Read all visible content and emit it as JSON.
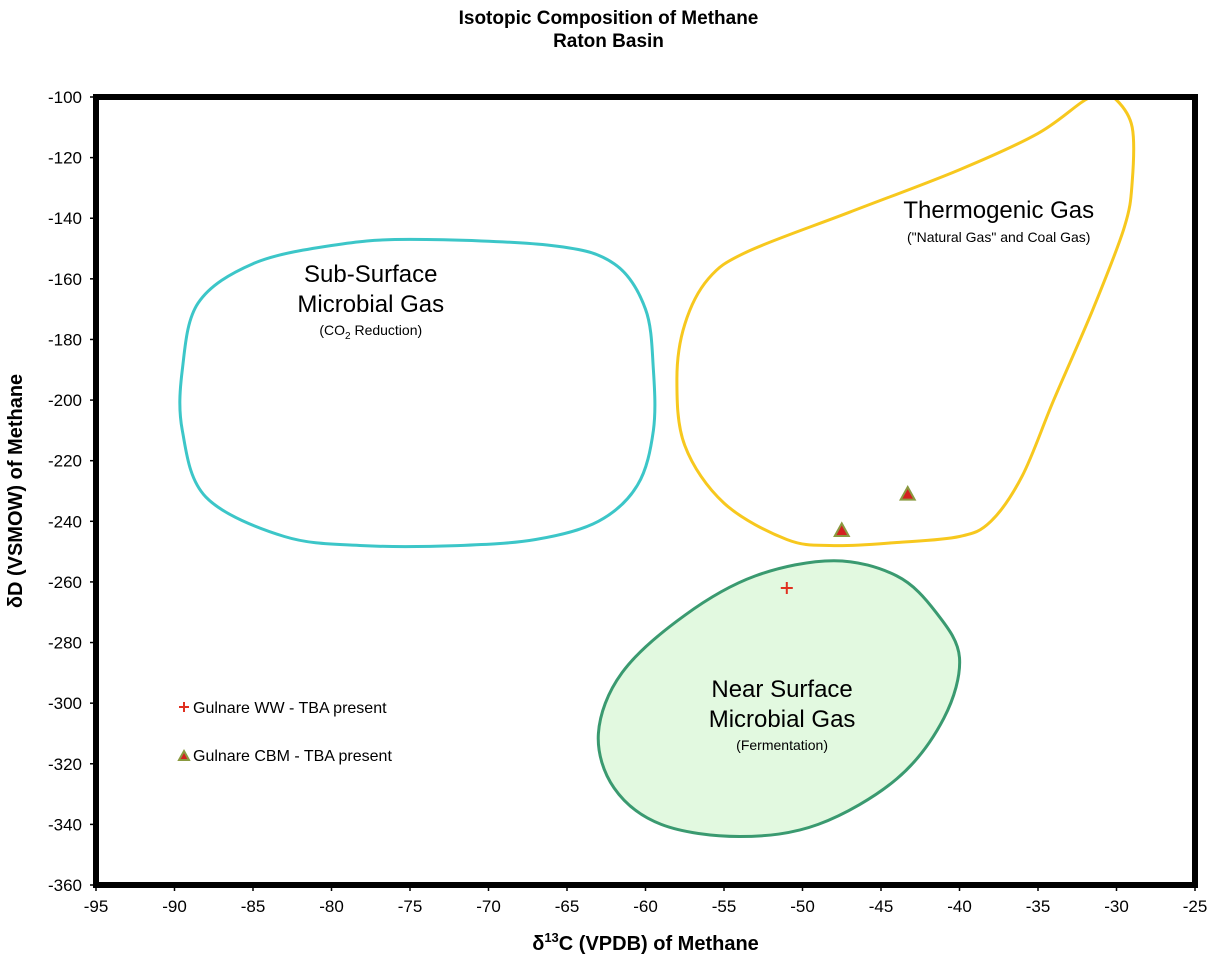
{
  "chart_data": {
    "type": "scatter",
    "title": "Isotopic Composition of Methane",
    "subtitle": "Raton Basin",
    "xlabel_prefix": "δ",
    "xlabel_sup": "13",
    "xlabel_rest": "C  (VPDB) of Methane",
    "ylabel": "δD (VSMOW) of Methane",
    "xlim": [
      -95,
      -25
    ],
    "ylim": [
      -360,
      -100
    ],
    "x_ticks": [
      -95,
      -90,
      -85,
      -80,
      -75,
      -70,
      -65,
      -60,
      -55,
      -50,
      -45,
      -40,
      -35,
      -30,
      -25
    ],
    "y_ticks": [
      -100,
      -120,
      -140,
      -160,
      -180,
      -200,
      -220,
      -240,
      -260,
      -280,
      -300,
      -320,
      -340,
      -360
    ],
    "grid": false,
    "legend_position": "lower-left",
    "series": [
      {
        "name": "Gulnare WW - TBA present",
        "marker": "plus",
        "color": "#e03020",
        "points": [
          {
            "x": -51.0,
            "y": -262
          }
        ]
      },
      {
        "name": "Gulnare CBM - TBA present",
        "marker": "triangle",
        "color": "#d42020",
        "edge_color": "#8a9a40",
        "points": [
          {
            "x": -47.5,
            "y": -243
          },
          {
            "x": -43.3,
            "y": -231
          }
        ]
      }
    ],
    "regions": [
      {
        "name": "Sub-Surface Microbial Gas",
        "label_line1": "Sub-Surface",
        "label_line2": "Microbial Gas",
        "sublabel_pre": "(CO",
        "sublabel_sub": "2",
        "sublabel_post": " Reduction)",
        "label_x": -77.5,
        "label_y": -161,
        "color": "#3cc6c8",
        "fill": "none",
        "outline": [
          [
            -75,
            -147
          ],
          [
            -66,
            -149
          ],
          [
            -62,
            -155
          ],
          [
            -60,
            -170
          ],
          [
            -59.5,
            -190
          ],
          [
            -59.5,
            -210
          ],
          [
            -60.5,
            -228
          ],
          [
            -63,
            -240
          ],
          [
            -67,
            -246
          ],
          [
            -72,
            -248
          ],
          [
            -78,
            -248
          ],
          [
            -83,
            -245
          ],
          [
            -88,
            -232
          ],
          [
            -89.5,
            -210
          ],
          [
            -89.5,
            -190
          ],
          [
            -88.5,
            -168
          ],
          [
            -85,
            -155
          ],
          [
            -80,
            -149
          ]
        ]
      },
      {
        "name": "Thermogenic Gas",
        "label_line1": "Thermogenic Gas",
        "sublabel": "(\"Natural Gas\" and Coal Gas)",
        "label_x": -37.5,
        "label_y": -140,
        "color": "#f7c81e",
        "fill": "none",
        "outline": [
          [
            -31,
            -100
          ],
          [
            -30,
            -101
          ],
          [
            -29,
            -110
          ],
          [
            -29,
            -128
          ],
          [
            -29.5,
            -143
          ],
          [
            -31.5,
            -170
          ],
          [
            -34,
            -200
          ],
          [
            -36,
            -225
          ],
          [
            -38,
            -240
          ],
          [
            -40,
            -245
          ],
          [
            -44,
            -247
          ],
          [
            -48,
            -248
          ],
          [
            -51,
            -246
          ],
          [
            -55,
            -234
          ],
          [
            -57.5,
            -215
          ],
          [
            -58,
            -193
          ],
          [
            -57.5,
            -175
          ],
          [
            -56,
            -160
          ],
          [
            -53.5,
            -151
          ],
          [
            -47,
            -138
          ],
          [
            -40,
            -124
          ],
          [
            -35,
            -112
          ],
          [
            -32,
            -101
          ]
        ]
      },
      {
        "name": "Near Surface Microbial Gas",
        "label_line1": "Near Surface",
        "label_line2": "Microbial Gas",
        "sublabel": "(Fermentation)",
        "label_x": -51.3,
        "label_y": -298,
        "color": "#3a9a70",
        "fill": "#e2f9e0",
        "outline": [
          [
            -48,
            -253
          ],
          [
            -44,
            -258
          ],
          [
            -41.5,
            -270
          ],
          [
            -40,
            -285
          ],
          [
            -41,
            -305
          ],
          [
            -44,
            -325
          ],
          [
            -49,
            -340
          ],
          [
            -54,
            -344
          ],
          [
            -59,
            -340
          ],
          [
            -62,
            -328
          ],
          [
            -63,
            -310
          ],
          [
            -61.5,
            -290
          ],
          [
            -57.5,
            -271
          ],
          [
            -53,
            -258
          ]
        ]
      }
    ]
  }
}
